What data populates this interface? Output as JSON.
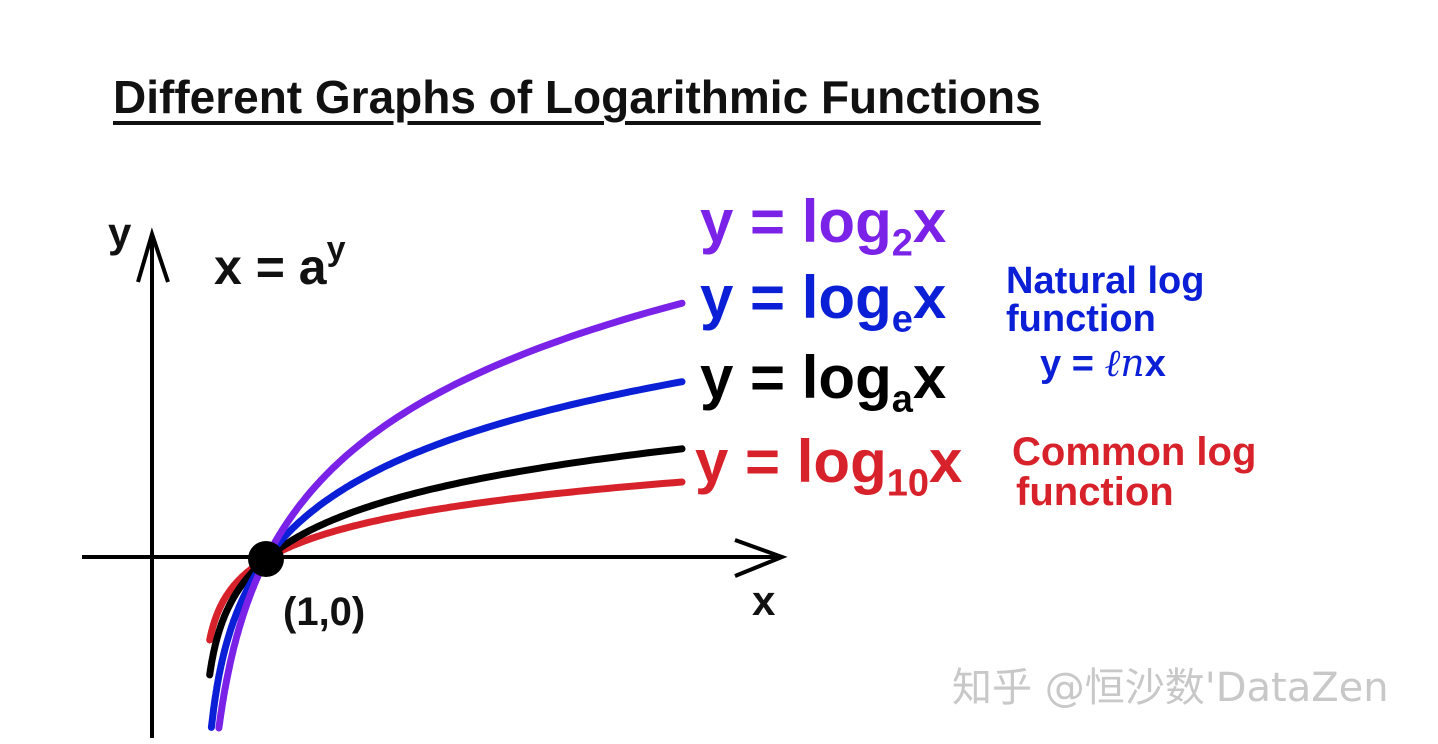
{
  "title": "Different Graphs of Logarithmic Functions",
  "colors": {
    "log2": "#7b22e8",
    "loge": "#0b1fd6",
    "loga": "#000000",
    "log10": "#d8222b",
    "axis": "#000000"
  },
  "axes": {
    "x_label": "x",
    "y_label": "y"
  },
  "inverse_equation": {
    "base": "x = a",
    "exponent": "y"
  },
  "point": {
    "label": "(1,0)",
    "x": 1,
    "y": 0
  },
  "curves": [
    {
      "id": "log2",
      "prefix": "y = log",
      "base": "2",
      "suffix": "x",
      "base_value": 2
    },
    {
      "id": "loge",
      "prefix": "y = log",
      "base": "e",
      "suffix": "x",
      "base_value": 2.718281828,
      "note_line1": "Natural log",
      "note_line2": "function",
      "alt_prefix": "y = ",
      "alt_fn": "ℓn",
      "alt_suffix": "x"
    },
    {
      "id": "loga",
      "prefix": "y = log",
      "base": "a",
      "suffix": "x",
      "base_value": 5
    },
    {
      "id": "log10",
      "prefix": "y = log",
      "base": "10",
      "suffix": "x",
      "base_value": 10,
      "note_line1": "Common log",
      "note_line2": "function"
    }
  ],
  "watermark": "知乎 @恒沙数'DataZen"
}
